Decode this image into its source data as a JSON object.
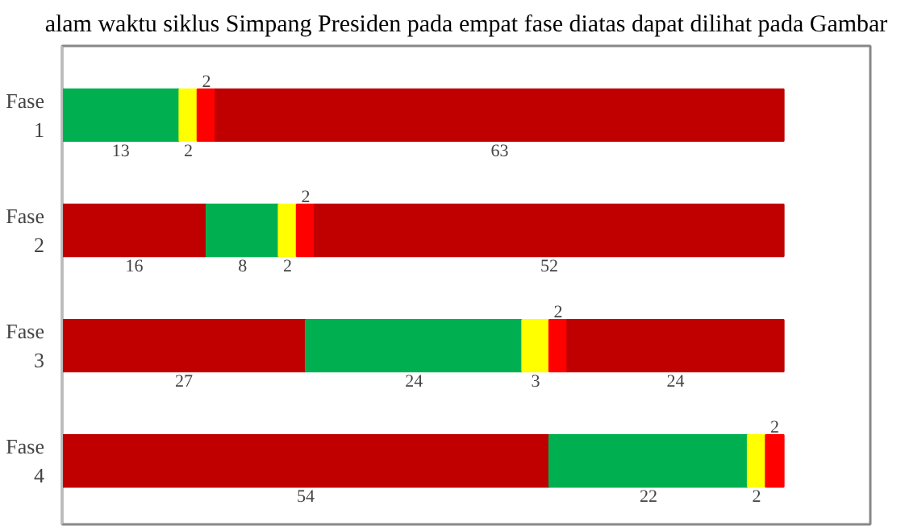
{
  "chart_data": {
    "type": "bar",
    "orientation": "horizontal",
    "stacked": true,
    "data_labels": true,
    "tick_labels": "y",
    "grid": false,
    "annotations": [
      "alam waktu siklus Simpang Presiden pada empat fase diatas dapat dilihat pada Gambar"
    ],
    "categories": [
      "Fase 1",
      "Fase 2",
      "Fase 3",
      "Fase 4"
    ],
    "series": [
      {
        "values": [
          13,
          16,
          27,
          54
        ],
        "colors": [
          "#00b050",
          "#c00000",
          "#c00000",
          "#c00000"
        ]
      },
      {
        "values": [
          2,
          8,
          24,
          22
        ],
        "colors": [
          "#ffff00",
          "#00b050",
          "#00b050",
          "#00b050"
        ]
      },
      {
        "values": [
          2,
          2,
          3,
          2
        ],
        "colors": [
          "#ff0000",
          "#ffff00",
          "#ffff00",
          "#ffff00"
        ]
      },
      {
        "values": [
          63,
          2,
          2,
          2
        ],
        "colors": [
          "#c00000",
          "#ff0000",
          "#ff0000",
          "#ff0000"
        ]
      },
      {
        "values": [
          null,
          52,
          24,
          null
        ],
        "colors": [
          null,
          "#c00000",
          "#c00000",
          null
        ]
      }
    ]
  }
}
